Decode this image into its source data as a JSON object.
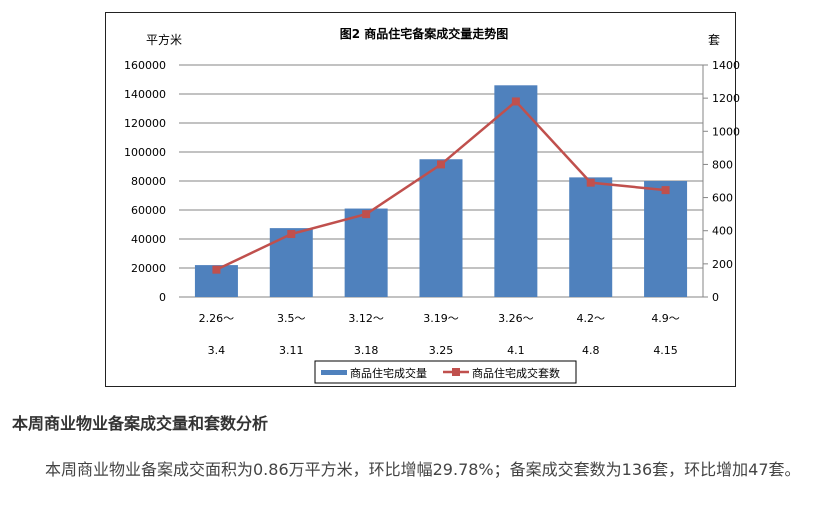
{
  "chart_data": {
    "type": "bar+line",
    "title": "图2   商品住宅备案成交量走势图",
    "ylabel_left": "平方米",
    "ylabel_right": "套",
    "ylim_left": [
      0,
      160000
    ],
    "ylim_right": [
      0,
      1400
    ],
    "yticks_left": [
      "0",
      "20000",
      "40000",
      "60000",
      "80000",
      "100000",
      "120000",
      "140000",
      "160000"
    ],
    "yticks_right": [
      "0",
      "200",
      "400",
      "600",
      "800",
      "1000",
      "1200",
      "1400"
    ],
    "categories": [
      [
        "2.26～",
        "3.4"
      ],
      [
        "3.5～",
        "3.11"
      ],
      [
        "3.12～",
        "3.18"
      ],
      [
        "3.19～",
        "3.25"
      ],
      [
        "3.26～",
        "4.1"
      ],
      [
        "4.2～",
        "4.8"
      ],
      [
        "4.9～",
        "4.15"
      ]
    ],
    "grid": true,
    "legend_position": "bottom",
    "series": [
      {
        "name": "商品住宅成交量",
        "type": "bar",
        "axis": "left",
        "color": "#4F81BD",
        "values": [
          22000,
          47500,
          61000,
          95000,
          146000,
          82500,
          80000
        ]
      },
      {
        "name": "商品住宅成交套数",
        "type": "line",
        "axis": "right",
        "color": "#C0504D",
        "values": [
          165,
          380,
          500,
          800,
          1180,
          690,
          645
        ]
      }
    ]
  },
  "article": {
    "heading": "本周商业物业备案成交量和套数分析",
    "paragraph": "本周商业物业备案成交面积为0.86万平方米，环比增幅29.78%；备案成交套数为136套，环比增加47套。"
  }
}
